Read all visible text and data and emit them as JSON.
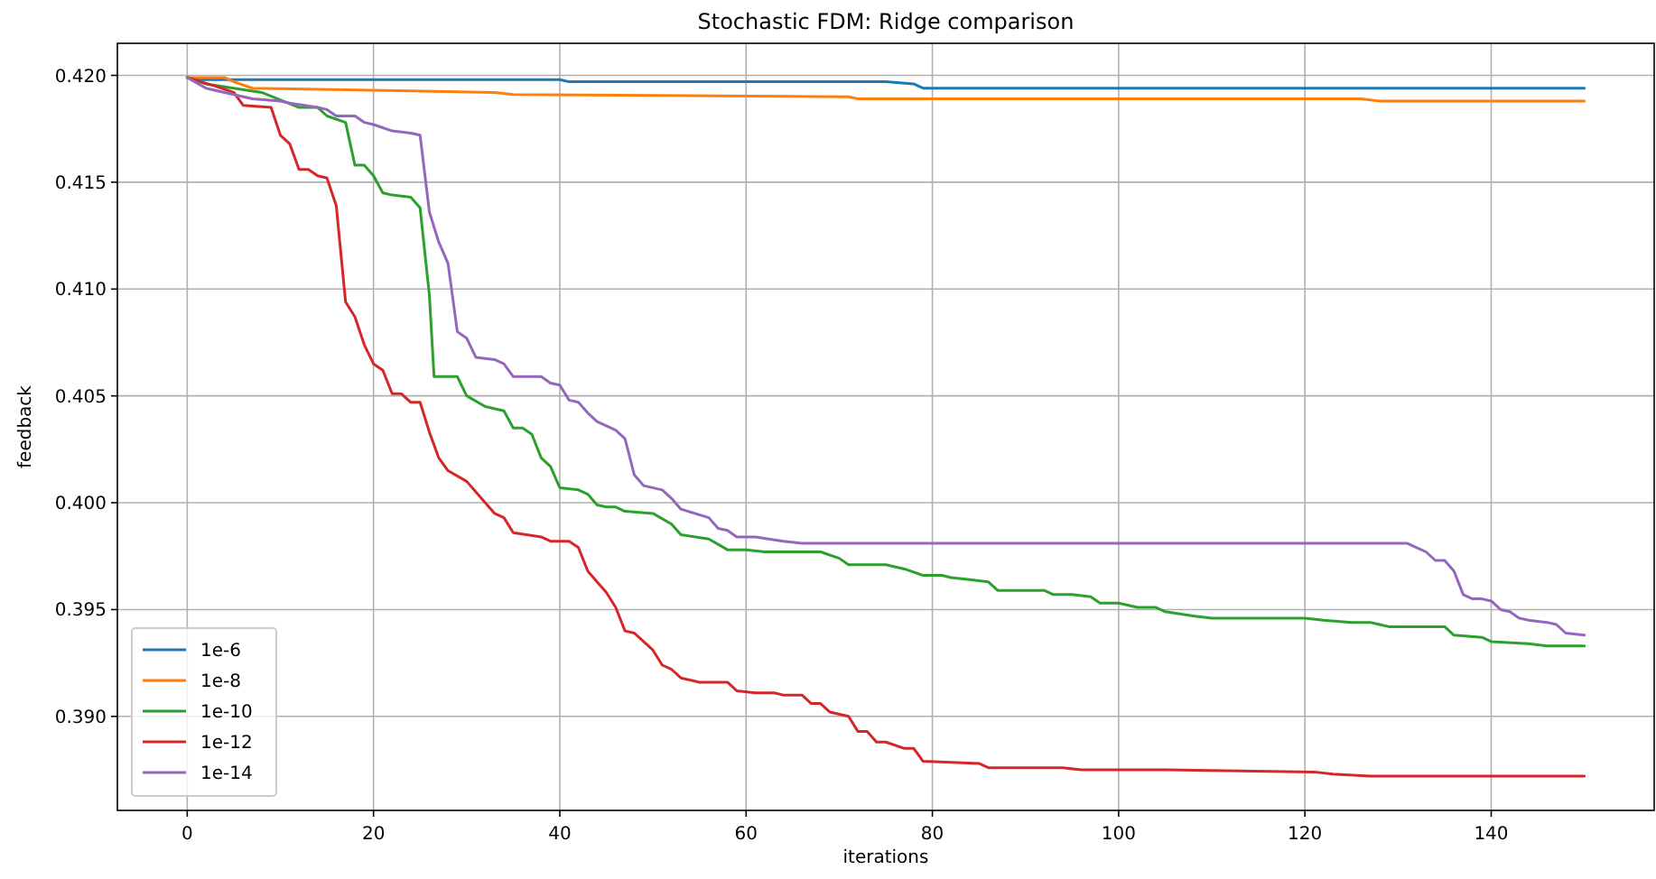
{
  "chart_data": {
    "type": "line",
    "title": "Stochastic FDM: Ridge comparison",
    "xlabel": "iterations",
    "ylabel": "feedback",
    "xlim": [
      -7.5,
      157.5
    ],
    "xticks": [
      0,
      20,
      40,
      60,
      80,
      100,
      120,
      140
    ],
    "ylim": [
      0.3856,
      0.4215
    ],
    "yticks": [
      {
        "value": 0.39,
        "label": "0.390"
      },
      {
        "value": 0.395,
        "label": "0.395"
      },
      {
        "value": 0.4,
        "label": "0.400"
      },
      {
        "value": 0.405,
        "label": "0.405"
      },
      {
        "value": 0.41,
        "label": "0.410"
      },
      {
        "value": 0.415,
        "label": "0.415"
      },
      {
        "value": 0.42,
        "label": "0.420"
      }
    ],
    "grid": true,
    "legend": "bottom left",
    "marker": "none",
    "line_style": "solid",
    "series": [
      {
        "name": "1e-6",
        "color": "#1f77b4",
        "x": [
          0,
          1,
          40,
          41,
          75,
          78,
          79,
          150
        ],
        "values": [
          0.4199,
          0.4198,
          0.4198,
          0.4197,
          0.4197,
          0.4196,
          0.4194,
          0.4194
        ]
      },
      {
        "name": "1e-8",
        "color": "#ff7f0e",
        "x": [
          0,
          4,
          5,
          7,
          20,
          33,
          35,
          71,
          72,
          126,
          128,
          150
        ],
        "values": [
          0.4199,
          0.4199,
          0.4197,
          0.4194,
          0.4193,
          0.4192,
          0.4191,
          0.419,
          0.4189,
          0.4189,
          0.4188,
          0.4188
        ]
      },
      {
        "name": "1e-10",
        "color": "#2ca02c",
        "x": [
          0,
          2,
          8,
          12,
          14,
          15,
          17,
          18,
          19,
          20,
          21,
          22,
          24,
          25,
          26,
          26.5,
          29,
          30,
          32,
          34,
          35,
          36,
          37,
          38,
          39,
          40,
          42,
          43,
          44,
          45,
          46,
          47,
          50,
          52,
          53,
          56,
          58,
          60,
          62,
          68,
          70,
          71,
          75,
          77,
          79,
          81,
          82,
          84,
          86,
          87,
          92,
          93,
          95,
          97,
          98,
          100,
          102,
          104,
          105,
          108,
          110,
          120,
          122,
          125,
          127,
          129,
          135,
          136,
          139,
          140,
          144,
          146,
          150
        ],
        "values": [
          0.4199,
          0.4196,
          0.4192,
          0.4185,
          0.4185,
          0.4181,
          0.4178,
          0.4158,
          0.4158,
          0.4153,
          0.4145,
          0.4144,
          0.4143,
          0.4138,
          0.4097,
          0.4059,
          0.4059,
          0.405,
          0.4045,
          0.4043,
          0.4035,
          0.4035,
          0.4032,
          0.4021,
          0.4017,
          0.4007,
          0.4006,
          0.4004,
          0.3999,
          0.3998,
          0.3998,
          0.3996,
          0.3995,
          0.399,
          0.3985,
          0.3983,
          0.3978,
          0.3978,
          0.3977,
          0.3977,
          0.3974,
          0.3971,
          0.3971,
          0.3969,
          0.3966,
          0.3966,
          0.3965,
          0.3964,
          0.3963,
          0.3959,
          0.3959,
          0.3957,
          0.3957,
          0.3956,
          0.3953,
          0.3953,
          0.3951,
          0.3951,
          0.3949,
          0.3947,
          0.3946,
          0.3946,
          0.3945,
          0.3944,
          0.3944,
          0.3942,
          0.3942,
          0.3938,
          0.3937,
          0.3935,
          0.3934,
          0.3933,
          0.3933
        ]
      },
      {
        "name": "1e-12",
        "color": "#d62728",
        "x": [
          0,
          3,
          5,
          6,
          9,
          10,
          11,
          12,
          13,
          14,
          15,
          16,
          17,
          18,
          19,
          20,
          21,
          22,
          23,
          24,
          25,
          26,
          27,
          28,
          30,
          31,
          33,
          34,
          35,
          38,
          39,
          41,
          42,
          43,
          44,
          45,
          46,
          47,
          48,
          49,
          50,
          51,
          52,
          53,
          55,
          58,
          59,
          61,
          63,
          64,
          66,
          67,
          68,
          69,
          71,
          72,
          73,
          74,
          75,
          77,
          78,
          79,
          85,
          86,
          94,
          96,
          105,
          121,
          123,
          127,
          150
        ],
        "values": [
          0.4199,
          0.4195,
          0.4192,
          0.4186,
          0.4185,
          0.4172,
          0.4168,
          0.4156,
          0.4156,
          0.4153,
          0.4152,
          0.4139,
          0.4094,
          0.4087,
          0.4074,
          0.4065,
          0.4062,
          0.4051,
          0.4051,
          0.4047,
          0.4047,
          0.4033,
          0.4021,
          0.4015,
          0.401,
          0.4005,
          0.3995,
          0.3993,
          0.3986,
          0.3984,
          0.3982,
          0.3982,
          0.3979,
          0.3968,
          0.3963,
          0.3958,
          0.3951,
          0.394,
          0.3939,
          0.3935,
          0.3931,
          0.3924,
          0.3922,
          0.3918,
          0.3916,
          0.3916,
          0.3912,
          0.3911,
          0.3911,
          0.391,
          0.391,
          0.3906,
          0.3906,
          0.3902,
          0.39,
          0.3893,
          0.3893,
          0.3888,
          0.3888,
          0.3885,
          0.3885,
          0.3879,
          0.3878,
          0.3876,
          0.3876,
          0.3875,
          0.3875,
          0.3874,
          0.3873,
          0.3872,
          0.3872
        ]
      },
      {
        "name": "1e-14",
        "color": "#9467bd",
        "x": [
          0,
          2,
          5,
          7,
          10,
          11,
          14,
          15,
          16,
          18,
          19,
          20,
          22,
          24,
          25,
          26,
          27,
          28,
          29,
          30,
          31,
          33,
          34,
          35,
          38,
          39,
          40,
          41,
          42,
          43,
          44,
          46,
          47,
          48,
          49,
          51,
          52,
          53,
          56,
          57,
          58,
          59,
          61,
          64,
          66,
          131,
          132,
          133,
          134,
          135,
          136,
          137,
          138,
          139,
          140,
          141,
          142,
          143,
          144,
          146,
          147,
          148,
          150
        ],
        "values": [
          0.4199,
          0.4194,
          0.4191,
          0.4189,
          0.4188,
          0.4187,
          0.4185,
          0.4184,
          0.4181,
          0.4181,
          0.4178,
          0.4177,
          0.4174,
          0.4173,
          0.4172,
          0.4136,
          0.4122,
          0.4112,
          0.408,
          0.4077,
          0.4068,
          0.4067,
          0.4065,
          0.4059,
          0.4059,
          0.4056,
          0.4055,
          0.4048,
          0.4047,
          0.4042,
          0.4038,
          0.4034,
          0.403,
          0.4013,
          0.4008,
          0.4006,
          0.4002,
          0.3997,
          0.3993,
          0.3988,
          0.3987,
          0.3984,
          0.3984,
          0.3982,
          0.3981,
          0.3981,
          0.3979,
          0.3977,
          0.3973,
          0.3973,
          0.3968,
          0.3957,
          0.3955,
          0.3955,
          0.3954,
          0.395,
          0.3949,
          0.3946,
          0.3945,
          0.3944,
          0.3943,
          0.3939,
          0.3938
        ]
      }
    ]
  }
}
